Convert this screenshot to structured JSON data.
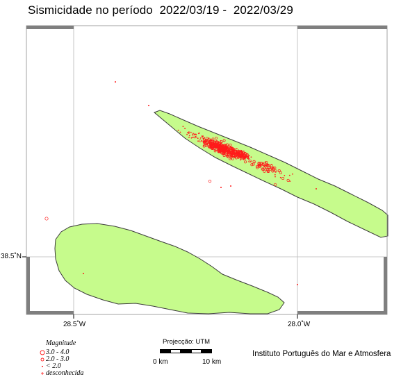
{
  "title": "Sismicidade no período  2022/03/19 -  2022/03/29",
  "axes": {
    "lon_labels": [
      "28.5˚W",
      "28.0˚W"
    ],
    "lat_labels": [
      "38.5˚N"
    ]
  },
  "legend": {
    "title": "Magnitude",
    "items": [
      {
        "label": "3.0 - 4.0",
        "symbol": "large-circle"
      },
      {
        "label": "2.0 - 3.0",
        "symbol": "small-circle"
      },
      {
        "label": "< 2.0",
        "symbol": "dot"
      },
      {
        "label": "desconhecida",
        "symbol": "star"
      }
    ]
  },
  "scalebar": {
    "title": "Projecção: UTM",
    "left_label": "0 km",
    "right_label": "10 km"
  },
  "credit": "Instituto Português do Mar e Atmosfera",
  "colors": {
    "land": "#c6fb8c",
    "coastline": "#3a3a3a",
    "quake": "#ff1b1b",
    "frame": "#7f7f7f",
    "grid": "#b8b8b8"
  }
}
